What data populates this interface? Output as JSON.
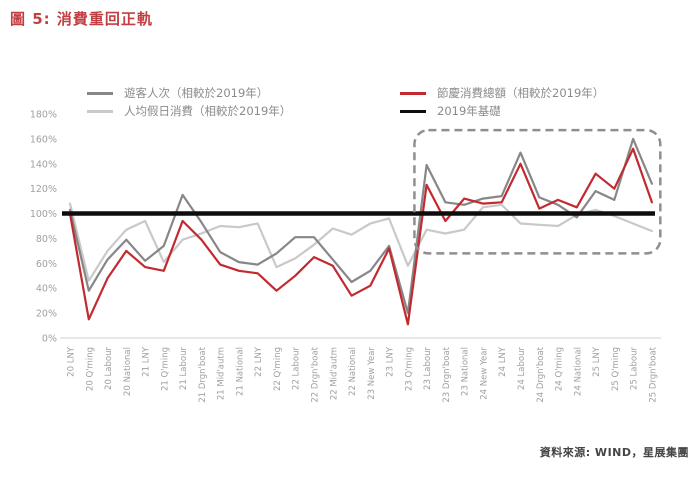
{
  "title": "圖 5: 消費重回正軌",
  "source": "資料來源: WIND，星展集團",
  "colors": {
    "title_red": "#c13f42",
    "visitor": "#878787",
    "per_capita": "#c9c9c9",
    "total": "#c22a30",
    "baseline": "#0d0d0d",
    "axis_text": "#a0a0a0",
    "axis_line": "#d9d9d9",
    "legend_text": "#8b8b8b",
    "highlight_border": "#8f8f8f"
  },
  "chart_data": {
    "type": "line",
    "title": "消費重回正軌",
    "ylabel": "",
    "xlabel": "",
    "ylim": [
      0,
      180
    ],
    "ytick_step": 20,
    "ytick_labels": [
      "0%",
      "20%",
      "40%",
      "60%",
      "80%",
      "100%",
      "120%",
      "140%",
      "160%",
      "180%"
    ],
    "grid": false,
    "legend_position": "top",
    "categories": [
      "20 LNY",
      "20 Q'ming",
      "20 Labour",
      "20 National",
      "21 LNY",
      "21 Q'ming",
      "21 Labour",
      "21 Drgn'boat",
      "21 Mid'autm",
      "21 National",
      "22 LNY",
      "22 Q'ming",
      "22 Labour",
      "22 Drgn'boat",
      "22 Mid'autm",
      "22 National",
      "23 New Year",
      "23 LNY",
      "23 Q'ming",
      "23 Labour",
      "23 Drgn'boat",
      "23 National",
      "24 New Year",
      "24 LNY",
      "24 Labour",
      "24 Drgn'boat",
      "24 Q'ming",
      "24 National",
      "25 LNY",
      "25 Q'ming",
      "25 Labour",
      "25 Drgn'boat"
    ],
    "series": [
      {
        "name": "遊客人次（相較於2019年）",
        "color_key": "visitor",
        "values": [
          103,
          38,
          63,
          79,
          62,
          74,
          115,
          93,
          69,
          61,
          59,
          68,
          81,
          81,
          63,
          45,
          54,
          74,
          20,
          139,
          109,
          107,
          112,
          114,
          149,
          113,
          107,
          97,
          118,
          111,
          160,
          124
        ]
      },
      {
        "name": "人均假日消費（相較於2019年）",
        "color_key": "per_capita",
        "values": [
          108,
          46,
          70,
          87,
          94,
          61,
          79,
          84,
          90,
          89,
          92,
          57,
          64,
          75,
          88,
          83,
          92,
          96,
          58,
          87,
          84,
          87,
          105,
          107,
          92,
          91,
          90,
          99,
          103,
          98,
          92,
          86
        ]
      },
      {
        "name": "節慶消費總額（相較於2019年）",
        "color_key": "total",
        "values": [
          100,
          15,
          48,
          70,
          57,
          54,
          94,
          79,
          59,
          54,
          52,
          38,
          50,
          65,
          58,
          34,
          42,
          72,
          11,
          123,
          94,
          112,
          108,
          109,
          140,
          104,
          111,
          105,
          132,
          120,
          152,
          109
        ]
      },
      {
        "name": "2019年基礎",
        "color_key": "baseline",
        "constant": 100
      }
    ],
    "annotation": {
      "type": "dashed-box",
      "x_start_index": 18.35,
      "x_end_index": 31.45,
      "y_min": 68,
      "y_max": 167,
      "corner_radius": 14
    }
  }
}
